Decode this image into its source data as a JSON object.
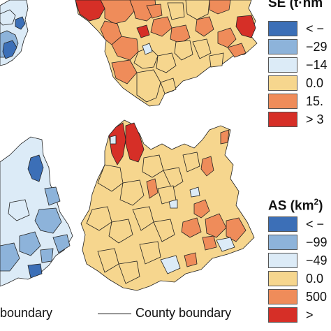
{
  "colors": {
    "deep_blue": "#3c6fb7",
    "mid_blue": "#8db3da",
    "light_blue": "#dcebf7",
    "pale_yellow": "#f6d68e",
    "orange": "#ef8c5a",
    "red": "#d62f27",
    "boundary": "#222222"
  },
  "top_legend": {
    "title_prefix": "SE (t·hm",
    "title_sup": "",
    "items": [
      {
        "label": "< −",
        "color": "#3c6fb7"
      },
      {
        "label": "−29",
        "color": "#8db3da"
      },
      {
        "label": "−14",
        "color": "#dcebf7"
      },
      {
        "label": "0.0",
        "color": "#f6d68e"
      },
      {
        "label": "15.",
        "color": "#ef8c5a"
      },
      {
        "label": "> 3",
        "color": "#d62f27"
      }
    ]
  },
  "bottom_legend": {
    "title_prefix": "AS (km",
    "title_sup": "2",
    "title_suffix": ")",
    "items": [
      {
        "label": "< −",
        "color": "#3c6fb7"
      },
      {
        "label": "−99",
        "color": "#8db3da"
      },
      {
        "label": "−49",
        "color": "#dcebf7"
      },
      {
        "label": "0.0",
        "color": "#f6d68e"
      },
      {
        "label": "500",
        "color": "#ef8c5a"
      },
      {
        "label": "> ",
        "color": "#d62f27"
      }
    ]
  },
  "captions": {
    "left": "boundary",
    "right": "County boundary"
  }
}
